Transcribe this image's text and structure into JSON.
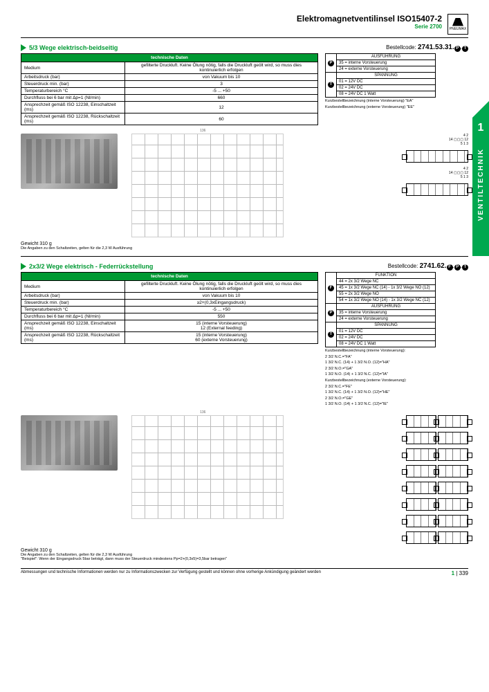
{
  "header": {
    "title": "Elektromagnetventilinsel ISO15407-2",
    "series": "Serie 2700",
    "logo": "PNEUMAX"
  },
  "sideTab": {
    "num": "1",
    "text": "VENTILTECHNIK"
  },
  "section1": {
    "title": "5/3 Wege elektrisch-beidseitig",
    "orderLabel": "Bestellcode:",
    "orderCode": "2741.53.31.",
    "techHeader": "technische Daten",
    "rows": [
      [
        "Medium",
        "gefilterte Druckluft. Keine Ölung nötig, falls die Druckluft geölt wird, so muss dies kontinuierlich erfolgen"
      ],
      [
        "Arbeitsdruck (bar)",
        "von Vakuum bis 10"
      ],
      [
        "Steuerdruck min. (bar)",
        "3"
      ],
      [
        "Temperaturbereich °C",
        "-5 ... +50"
      ],
      [
        "Durchfluss bei 6 bar mit Δp=1 (Nl/min)",
        "660"
      ],
      [
        "Ansprechzeit gemäß ISO 12238, Einschaltzeit (ms)",
        "12"
      ],
      [
        "Ansprechzeit gemäß ISO 12238, Rückschaltzeit (ms)",
        "60"
      ]
    ],
    "codeTable": {
      "g1": {
        "hdr": "AUSFÜHRUNG",
        "rows": [
          "35 = interne Vorsteuerung",
          "24 = externe Vorsteuerung"
        ]
      },
      "g2": {
        "hdr": "SPANNUNG",
        "rows": [
          "01 = 12V DC",
          "02 = 24V DC",
          "08 = 24V DC 1 Watt"
        ]
      }
    },
    "note1": "Kurzbestellbezeichnung (interne Vorsteuerung) \"EA\"",
    "note2": "Kurzbestellbezeichnung (externe Vorsteuerung) \"EE\"",
    "weight": "Gewicht 310 g",
    "weightSub": "Die Angaben zu den Schaltzeiten, gelten für die 2,3 W Ausführung"
  },
  "section2": {
    "title": "2x3/2 Wege elektrisch - Federrückstellung",
    "orderLabel": "Bestellcode:",
    "orderCode": "2741.62.",
    "techHeader": "technische Daten",
    "rows": [
      [
        "Medium",
        "gefilterte Druckluft. Keine Ölung nötig, falls die Druckluft geölt wird, so muss dies kontinuierlich erfolgen"
      ],
      [
        "Arbeitsdruck (bar)",
        "von Vakuum bis 10"
      ],
      [
        "Steuerdruck min. (bar)",
        "≥2+(0,3xEingangsdruck)"
      ],
      [
        "Temperaturbereich °C",
        "-5 ... +50"
      ],
      [
        "Durchfluss bei 6 bar mit Δp=1 (Nl/min)",
        "550"
      ],
      [
        "Ansprechzeit gemäß ISO 12238, Einschaltzeit (ms)",
        "15 (interne Vorsteuerung)\n12 (External feeding)"
      ],
      [
        "Ansprechzeit gemäß ISO 12238, Rückschaltzeit (ms)",
        "15 (interne Vorsteuerung)\n60 (externe Vorsteuerung)"
      ]
    ],
    "codeTable": {
      "g0": {
        "hdr": "FUNKTION",
        "rows": [
          "44 = 2x 3/2 Wege NC",
          "45 = 1x 3/2 Wege NC (14) - 1x 3/2 Wege NO (12)",
          "55 = 2x 3/2 Wege NO",
          "54 = 1x 3/2 Wege NO (14) - 1x 3/2 Wege NC (12)"
        ]
      },
      "g1": {
        "hdr": "AUSFÜHRUNG",
        "rows": [
          "35 = interne Vorsteuerung",
          "24 = externe Vorsteuerung"
        ]
      },
      "g2": {
        "hdr": "SPANNUNG",
        "rows": [
          "01 = 12V DC",
          "02 = 24V DC",
          "08 = 24V DC 1 Watt"
        ]
      }
    },
    "noteLines": [
      "Kurzbestellbezeichnung (interne Vorsteuerung):",
      "2 3/2 N.C.=\"FA\"",
      "1 3/2 N.C. (14) + 1 3/2 N.O. (12)=\"HA\"",
      "2 3/2 N.O.=\"GA\"",
      "1 3/2 N.O. (14) + 1 3/2 N.C. (12)=\"IA\"",
      "Kurzbestellbezeichnung (externe Vorsteuerung):",
      "2 3/2 N.C.=\"FE\"",
      "1 3/2 N.C. (14) + 1 3/2 N.O. (12)=\"HE\"",
      "2 3/2 N.O.=\"GE\"",
      "1 3/2 N.O. (14) + 1 3/2 N.C. (12)=\"IE\""
    ],
    "weight": "Gewicht 310 g",
    "weightSub1": "Die Angaben zu den Schaltzeiten, gelten für die 2,3 W Ausführung",
    "weightSub2": "\"Beispiel\": Wenn der Eingangsdruck 5bar beträgt, dann muss der Steuerdruck mindestens Pp=2+(0,3x5)=3,5bar betragen\""
  },
  "footer": {
    "disclaimer": "Abmessungen und technische Informationen werden nur zu Informationszwecken zur Verfügung gestellt und können ohne vorherige Ankündigung geändert werden",
    "chapter": "1",
    "page": "339"
  }
}
